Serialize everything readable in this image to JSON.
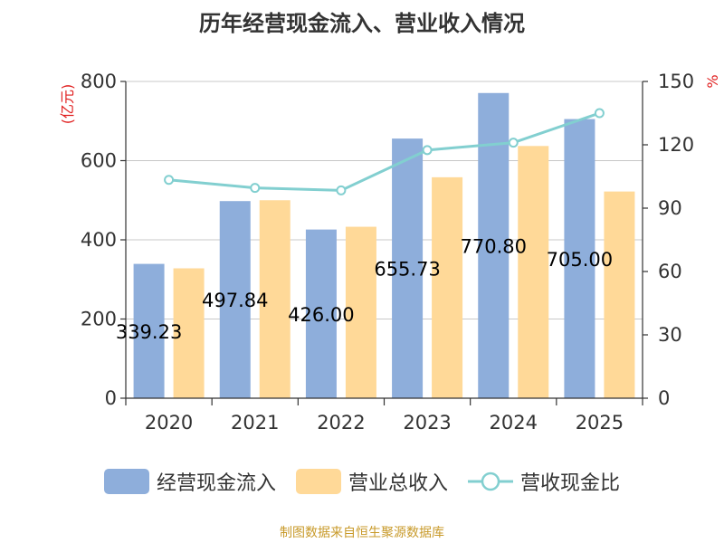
{
  "colors": {
    "cash_inflow_bar": "#8eaedb",
    "revenue_bar": "#ffd998",
    "ratio_line": "#82cfd0",
    "unit_label": "#e02020",
    "source_note": "#c89a2a",
    "axis": "#333333",
    "grid": "#c8c8c8"
  },
  "source_note": "制图数据来自恒生聚源数据库",
  "chart_data": {
    "type": "bar",
    "title": "历年经营现金流入、营业收入情况",
    "categories": [
      "2020",
      "2021",
      "2022",
      "2023",
      "2024",
      "2025"
    ],
    "left_axis": {
      "unit": "(亿元)",
      "ylim": [
        0,
        800
      ],
      "ticks": [
        0,
        200,
        400,
        600,
        800
      ]
    },
    "right_axis": {
      "unit": "%",
      "ylim": [
        0,
        150
      ],
      "ticks": [
        0,
        30,
        60,
        90,
        120,
        150
      ]
    },
    "grid": true,
    "legend_position": "bottom",
    "series": [
      {
        "name": "经营现金流入",
        "type": "bar",
        "axis": "left",
        "values": [
          339.23,
          497.84,
          426.0,
          655.73,
          770.8,
          705.0
        ],
        "labels": [
          "339.23",
          "497.84",
          "426.00",
          "655.73",
          "770.80",
          "705.00"
        ]
      },
      {
        "name": "营业总收入",
        "type": "bar",
        "axis": "left",
        "values": [
          328,
          500,
          433,
          558,
          637,
          522
        ]
      },
      {
        "name": "营收现金比",
        "type": "line",
        "axis": "right",
        "values": [
          103.4,
          99.6,
          98.4,
          117.5,
          121.0,
          135.0
        ]
      }
    ]
  }
}
